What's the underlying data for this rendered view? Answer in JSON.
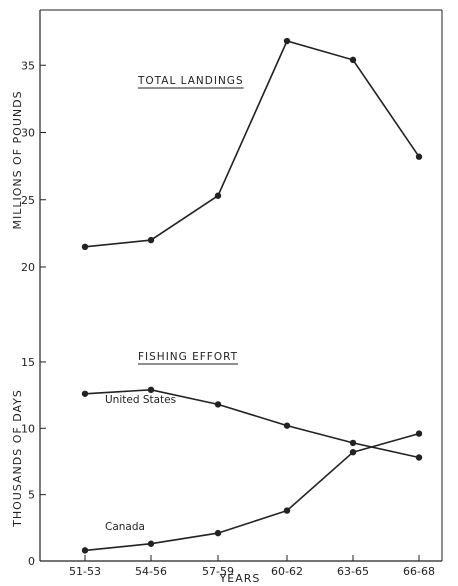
{
  "chart_data": {
    "type": "line",
    "categories": [
      "51-53",
      "54-56",
      "57-59",
      "60-62",
      "63-65",
      "66-68"
    ],
    "xlabel": "YEARS",
    "panels": [
      {
        "title": "TOTAL LANDINGS",
        "ylabel": "MILLIONS OF POUNDS",
        "ylim": [
          20,
          38
        ],
        "yticks": [
          20,
          25,
          30,
          35
        ],
        "series": [
          {
            "values": [
              21.5,
              22.0,
              25.3,
              36.8,
              35.4,
              28.2
            ]
          }
        ]
      },
      {
        "title": "FISHING EFFORT",
        "ylabel": "THOUSANDS OF DAYS",
        "ylim": [
          0,
          15
        ],
        "yticks": [
          0,
          5,
          10,
          15
        ],
        "series": [
          {
            "name": "United States",
            "values": [
              12.6,
              12.9,
              11.8,
              10.2,
              8.9,
              7.8
            ]
          },
          {
            "name": "Canada",
            "values": [
              0.8,
              1.3,
              2.1,
              3.8,
              8.2,
              9.6
            ]
          }
        ]
      }
    ],
    "grid": false,
    "line_color": "#222222"
  }
}
